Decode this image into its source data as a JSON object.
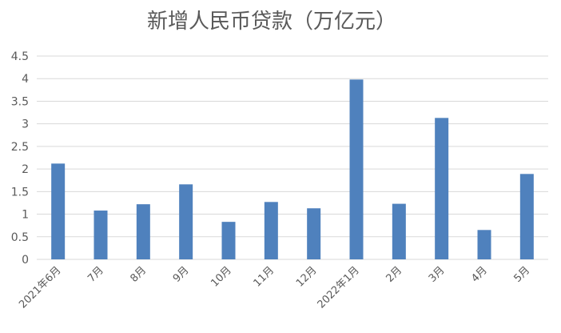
{
  "chart_data": {
    "type": "bar",
    "title": "新增人民币贷款（万亿元）",
    "categories": [
      "2021年6月",
      "7月",
      "8月",
      "9月",
      "10月",
      "11月",
      "12月",
      "2022年1月",
      "2月",
      "3月",
      "4月",
      "5月"
    ],
    "values": [
      2.12,
      1.08,
      1.22,
      1.66,
      0.83,
      1.27,
      1.13,
      3.98,
      1.23,
      3.13,
      0.65,
      1.89
    ],
    "y_ticks": [
      "0",
      "0.5",
      "1",
      "1.5",
      "2",
      "2.5",
      "3",
      "3.5",
      "4",
      "4.5"
    ],
    "ylim": [
      0,
      4.5
    ],
    "xlabel": "",
    "ylabel": "",
    "grid": true,
    "legend": "none",
    "bar_color": "#4F81BD",
    "grid_color": "#D9D9D9",
    "text_color": "#595959"
  }
}
